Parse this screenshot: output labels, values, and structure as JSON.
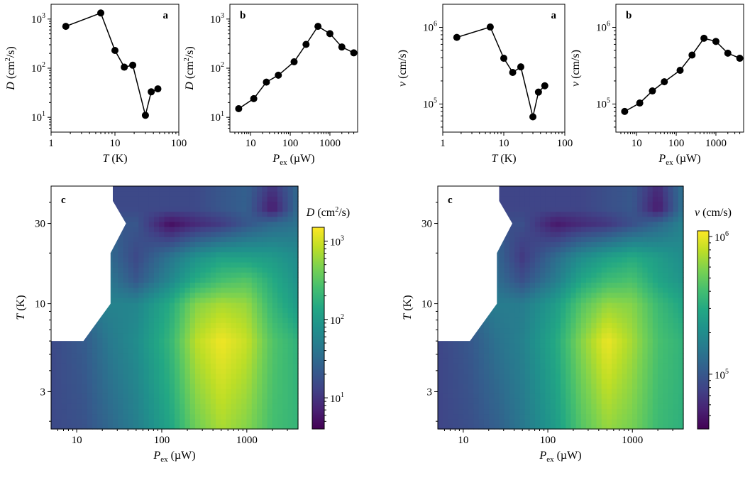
{
  "chart_data": [
    {
      "type": "line",
      "panel_label": "a",
      "xlabel": {
        "sym": "T",
        "unit": " (K)"
      },
      "ylabel": {
        "sym": "D",
        "unit": "cm²/s"
      },
      "xscale": "log",
      "yscale": "log",
      "xlim": [
        1,
        100
      ],
      "ylim": [
        5,
        2000
      ],
      "xticks": [
        1,
        10,
        100
      ],
      "xticklabels": [
        "1",
        "10",
        "100"
      ],
      "yticks": [
        10,
        100,
        1000
      ],
      "ytick_exponents": [
        "1",
        "2",
        "3"
      ],
      "series": [
        {
          "x": [
            1.7,
            6,
            10,
            14,
            19,
            30,
            37,
            47
          ],
          "y": [
            710,
            1330,
            230,
            105,
            115,
            11,
            33,
            38
          ]
        }
      ]
    },
    {
      "type": "line",
      "panel_label": "b",
      "xlabel": {
        "sym": "P",
        "sub": "ex",
        "unit": " (µW)"
      },
      "ylabel": {
        "sym": "D",
        "unit": "cm²/s"
      },
      "xscale": "log",
      "yscale": "log",
      "xlim": [
        3,
        5000
      ],
      "ylim": [
        5,
        2000
      ],
      "xticks": [
        10,
        100,
        1000
      ],
      "xticklabels": [
        "10",
        "100",
        "1000"
      ],
      "yticks": [
        10,
        100,
        1000
      ],
      "ytick_exponents": [
        "1",
        "2",
        "3"
      ],
      "series": [
        {
          "x": [
            5,
            12,
            25,
            50,
            125,
            250,
            500,
            1000,
            2000,
            4000
          ],
          "y": [
            15,
            24,
            52,
            72,
            135,
            305,
            710,
            505,
            270,
            205
          ]
        }
      ]
    },
    {
      "type": "line",
      "panel_label": "a",
      "xlabel": {
        "sym": "T",
        "unit": " (K)"
      },
      "ylabel": {
        "sym": "v",
        "unit": " (cm/s)"
      },
      "xscale": "log",
      "yscale": "log",
      "xlim": [
        1,
        100
      ],
      "ylim": [
        43000,
        2000000
      ],
      "xticks": [
        1,
        10,
        100
      ],
      "xticklabels": [
        "1",
        "10",
        "100"
      ],
      "yticks": [
        100000,
        1000000
      ],
      "ytick_exponents": [
        "5",
        "6"
      ],
      "series": [
        {
          "x": [
            1.7,
            6,
            10,
            14,
            19,
            30,
            37,
            47
          ],
          "y": [
            740000,
            1010000,
            395000,
            258000,
            305000,
            68000,
            143000,
            173000
          ]
        }
      ]
    },
    {
      "type": "line",
      "panel_label": "b",
      "xlabel": {
        "sym": "P",
        "sub": "ex",
        "unit": " (µW)"
      },
      "ylabel": {
        "sym": "v",
        "unit": " (cm/s)"
      },
      "xscale": "log",
      "yscale": "log",
      "xlim": [
        3,
        5000
      ],
      "ylim": [
        43000,
        2000000
      ],
      "xticks": [
        10,
        100,
        1000
      ],
      "xticklabels": [
        "10",
        "100",
        "1000"
      ],
      "yticks": [
        100000,
        1000000
      ],
      "ytick_exponents": [
        "5",
        "6"
      ],
      "series": [
        {
          "x": [
            5,
            12,
            25,
            50,
            125,
            250,
            500,
            1000,
            2000,
            4000
          ],
          "y": [
            80000,
            103000,
            148000,
            195000,
            275000,
            435000,
            720000,
            655000,
            460000,
            395000
          ]
        }
      ]
    },
    {
      "type": "heatmap",
      "panel_label": "c",
      "xlabel": {
        "sym": "P",
        "sub": "ex",
        "unit": " (µW)"
      },
      "ylabel": {
        "sym": "T",
        "unit": " (K)"
      },
      "colorbar_label": {
        "sym": "D",
        "unit": "cm²/s"
      },
      "colormap": "viridis",
      "xscale": "log",
      "yscale": "log",
      "xlim": [
        5,
        4000
      ],
      "ylim": [
        1.8,
        50
      ],
      "xticks": [
        10,
        100,
        1000
      ],
      "xticklabels": [
        "10",
        "100",
        "1000"
      ],
      "yticks": [
        3,
        10,
        30
      ],
      "yticklabels": [
        "3",
        "10",
        "30"
      ],
      "color_range": [
        4,
        1500
      ],
      "colorbar_ticks": [
        10,
        100,
        1000
      ],
      "colorbar_exponents": [
        "1",
        "2",
        "3"
      ],
      "grid_x": [
        5,
        12,
        25,
        50,
        125,
        250,
        500,
        1000,
        2000,
        4000
      ],
      "grid_y": [
        1.8,
        6,
        10,
        14,
        19,
        30,
        37,
        50
      ],
      "z": [
        [
          15,
          18,
          30,
          50,
          130,
          400,
          700,
          500,
          250,
          200
        ],
        [
          15,
          22,
          45,
          70,
          200,
          800,
          1330,
          900,
          300,
          180
        ],
        [
          null,
          null,
          55,
          60,
          150,
          500,
          700,
          600,
          200,
          100
        ],
        [
          null,
          null,
          40,
          20,
          60,
          150,
          250,
          300,
          150,
          80
        ],
        [
          null,
          null,
          30,
          15,
          40,
          80,
          120,
          115,
          100,
          70
        ],
        [
          null,
          null,
          null,
          20,
          5,
          8,
          11,
          20,
          30,
          38
        ],
        [
          null,
          null,
          null,
          15,
          15,
          15,
          20,
          25,
          6,
          33
        ],
        [
          null,
          null,
          null,
          15,
          15,
          15,
          20,
          25,
          10,
          30
        ]
      ]
    },
    {
      "type": "heatmap",
      "panel_label": "c",
      "xlabel": {
        "sym": "P",
        "sub": "ex",
        "unit": " (µW)"
      },
      "ylabel": {
        "sym": "T",
        "unit": " (K)"
      },
      "colorbar_label": {
        "sym": "v",
        "unit": " (cm/s)"
      },
      "colormap": "viridis",
      "xscale": "log",
      "yscale": "log",
      "xlim": [
        5,
        4000
      ],
      "ylim": [
        1.8,
        50
      ],
      "xticks": [
        10,
        100,
        1000
      ],
      "xticklabels": [
        "10",
        "100",
        "1000"
      ],
      "yticks": [
        3,
        10,
        30
      ],
      "yticklabels": [
        "3",
        "10",
        "30"
      ],
      "color_range": [
        40000,
        1100000
      ],
      "colorbar_ticks": [
        100000,
        1000000
      ],
      "colorbar_exponents": [
        "5",
        "6"
      ],
      "grid_x": [
        5,
        12,
        25,
        50,
        125,
        250,
        500,
        1000,
        2000,
        4000
      ],
      "grid_y": [
        1.8,
        6,
        10,
        14,
        19,
        30,
        37,
        50
      ],
      "z": [
        [
          80000,
          90000,
          110000,
          150000,
          250000,
          450000,
          650000,
          550000,
          380000,
          330000
        ],
        [
          80000,
          100000,
          140000,
          170000,
          300000,
          600000,
          1010000,
          700000,
          420000,
          340000
        ],
        [
          null,
          null,
          160000,
          160000,
          250000,
          450000,
          650000,
          600000,
          380000,
          280000
        ],
        [
          null,
          null,
          130000,
          90000,
          160000,
          280000,
          380000,
          420000,
          280000,
          220000
        ],
        [
          null,
          null,
          120000,
          70000,
          130000,
          200000,
          260000,
          305000,
          250000,
          200000
        ],
        [
          null,
          null,
          null,
          90000,
          50000,
          60000,
          68000,
          90000,
          120000,
          173000
        ],
        [
          null,
          null,
          null,
          80000,
          80000,
          80000,
          90000,
          100000,
          50000,
          143000
        ],
        [
          null,
          null,
          null,
          80000,
          80000,
          80000,
          90000,
          100000,
          60000,
          140000
        ]
      ]
    }
  ]
}
